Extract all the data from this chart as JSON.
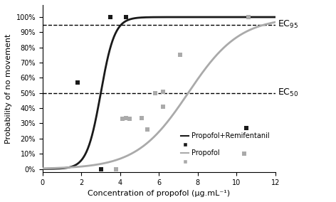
{
  "title": "",
  "xlabel": "Concentration of propofol (μg.mL⁻¹)",
  "ylabel": "Probability of no movement",
  "xlim": [
    0,
    12
  ],
  "ylim": [
    -0.02,
    1.08
  ],
  "yticks": [
    0,
    0.1,
    0.2,
    0.3,
    0.4,
    0.5,
    0.6,
    0.7,
    0.8,
    0.9,
    1.0
  ],
  "ytick_labels": [
    "0%",
    "10%",
    "20%",
    "30%",
    "40%",
    "50%",
    "60%",
    "70%",
    "80%",
    "90%",
    "100%"
  ],
  "xticks": [
    0,
    2,
    4,
    6,
    8,
    10,
    12
  ],
  "hline_ec95": 0.95,
  "hline_ec50": 0.5,
  "ec95_label": "EC$_{95}$",
  "ec50_label": "EC$_{50}$",
  "black_curve_ec50": 3.0,
  "black_curve_slope": 2.8,
  "gray_curve_ec50": 7.5,
  "gray_curve_slope": 0.75,
  "black_points_x": [
    1.8,
    3.0,
    3.5,
    4.3,
    10.5
  ],
  "black_points_y": [
    0.57,
    0.0,
    1.0,
    1.0,
    0.27
  ],
  "gray_points_x": [
    3.8,
    4.1,
    4.3,
    4.5,
    5.1,
    5.4,
    5.8,
    6.2,
    6.2,
    7.1,
    10.4,
    10.6
  ],
  "gray_points_y": [
    0.0,
    0.33,
    0.335,
    0.33,
    0.335,
    0.26,
    0.5,
    0.41,
    0.51,
    0.75,
    0.1,
    1.0
  ],
  "black_color": "#1a1a1a",
  "gray_color": "#aaaaaa",
  "background_color": "#ffffff",
  "legend_black_line": "Propofol+Remifentanil",
  "legend_gray_line": "Propofol",
  "figwidth": 4.72,
  "figheight": 2.84,
  "dpi": 100
}
